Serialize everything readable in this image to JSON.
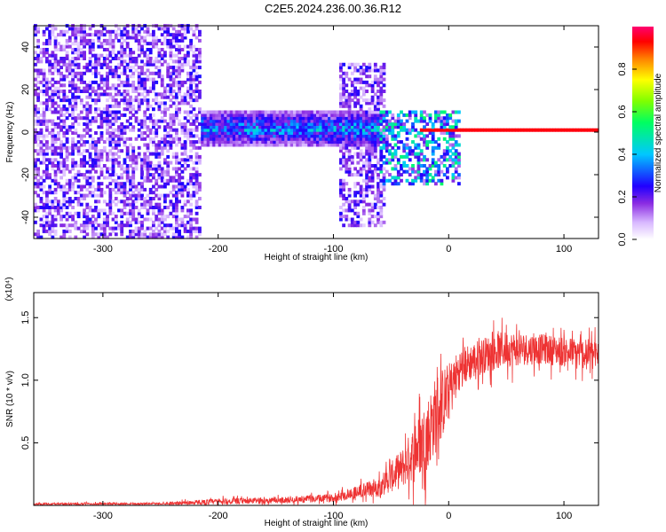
{
  "title": "C2E5.2024.236.00.36.R12",
  "chart_data": [
    {
      "type": "heatmap",
      "xlabel": "Height of straight line (km)",
      "ylabel": "Frequency (Hz)",
      "xlim": [
        -360,
        130
      ],
      "ylim": [
        -50,
        50
      ],
      "x_ticks": [
        -300,
        -200,
        -100,
        0,
        100
      ],
      "y_ticks": [
        -40,
        -20,
        0,
        20,
        40
      ],
      "colorbar": {
        "label": "Normalized spectral amplitude",
        "range": [
          0,
          1
        ],
        "ticks": [
          0.0,
          0.2,
          0.4,
          0.6,
          0.8
        ],
        "tick_labels": [
          "0.0",
          "0.2",
          "0.4",
          "0.6",
          "0.8"
        ],
        "colormap": [
          "#ffffff",
          "#d8b8ff",
          "#8a2be2",
          "#4b00d0",
          "#0000ff",
          "#00c8ff",
          "#00ff80",
          "#80ff00",
          "#ffff00",
          "#ff8000",
          "#ff0000",
          "#ff0080"
        ]
      },
      "regions": [
        {
          "x_range": [
            -360,
            -215
          ],
          "freq_range": [
            -50,
            50
          ],
          "amplitude": 0.12,
          "note_pattern": "broadband"
        },
        {
          "x_range": [
            -215,
            -60
          ],
          "freq_range": [
            -8,
            10
          ],
          "amplitude": 0.35
        },
        {
          "x_range": [
            -95,
            -55
          ],
          "freq_range": [
            -45,
            32
          ],
          "amplitude": 0.12
        },
        {
          "x_range": [
            -60,
            10
          ],
          "freq_range": [
            -25,
            10
          ],
          "amplitude": 0.25
        },
        {
          "x_range": [
            -25,
            130
          ],
          "freq_range": [
            -1,
            1
          ],
          "amplitude": 0.95
        }
      ],
      "ridge_line": {
        "x": [
          -360,
          -215,
          -150,
          -100,
          -60,
          -30,
          -10,
          0,
          130
        ],
        "freq": [
          0,
          3,
          4,
          2,
          1,
          0,
          0.5,
          1,
          1
        ]
      }
    },
    {
      "type": "line",
      "xlabel": "Height of straight line (km)",
      "ylabel": "SNR (10 * v/v)",
      "y_multiplier": "(x10⁴)",
      "xlim": [
        -360,
        130
      ],
      "ylim": [
        0,
        1.7
      ],
      "x_ticks": [
        -300,
        -200,
        -100,
        0,
        100
      ],
      "y_ticks": [
        0.5,
        1.0,
        1.5
      ],
      "y_tick_labels": [
        "0.5",
        "1.0",
        "1.5"
      ],
      "series": [
        {
          "color": "#ee3333",
          "envelope": {
            "x": [
              -360,
              -250,
              -200,
              -150,
              -100,
              -60,
              -40,
              -20,
              -10,
              0,
              10,
              30,
              50,
              80,
              110,
              130
            ],
            "mean": [
              0.01,
              0.015,
              0.03,
              0.04,
              0.06,
              0.15,
              0.3,
              0.55,
              0.75,
              0.9,
              1.1,
              1.2,
              1.25,
              1.25,
              1.22,
              1.2
            ],
            "spread": [
              0.01,
              0.01,
              0.03,
              0.03,
              0.04,
              0.1,
              0.2,
              0.35,
              0.4,
              0.3,
              0.2,
              0.18,
              0.18,
              0.15,
              0.15,
              0.15
            ]
          }
        }
      ]
    }
  ]
}
